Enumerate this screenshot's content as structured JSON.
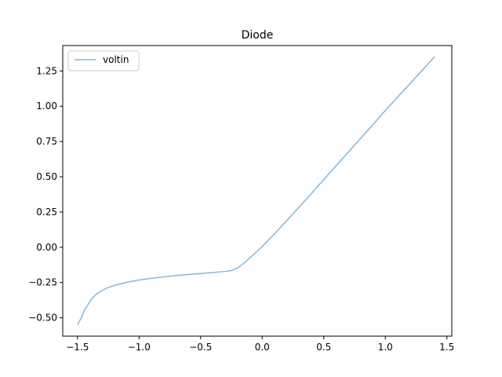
{
  "chart_data": {
    "type": "line",
    "title": "Diode",
    "xlabel": "",
    "ylabel": "",
    "xlim": [
      -1.62,
      1.54
    ],
    "ylim": [
      -0.63,
      1.43
    ],
    "xticks": [
      -1.5,
      -1.0,
      -0.5,
      0.0,
      0.5,
      1.0,
      1.5
    ],
    "xtick_labels": [
      "−1.5",
      "−1.0",
      "−0.5",
      "0.0",
      "0.5",
      "1.0",
      "1.5"
    ],
    "yticks": [
      -0.5,
      -0.25,
      0.0,
      0.25,
      0.5,
      0.75,
      1.0,
      1.25
    ],
    "ytick_labels": [
      "−0.50",
      "−0.25",
      "0.00",
      "0.25",
      "0.50",
      "0.75",
      "1.00",
      "1.25"
    ],
    "grid": false,
    "legend_position": "top-left",
    "series": [
      {
        "name": "voltin",
        "color": "#85b6d9",
        "x": [
          -1.5,
          -1.47,
          -1.44,
          -1.41,
          -1.38,
          -1.35,
          -1.3,
          -1.25,
          -1.2,
          -1.1,
          -1.0,
          -0.9,
          -0.8,
          -0.7,
          -0.6,
          -0.5,
          -0.4,
          -0.3,
          -0.25,
          -0.2,
          -0.15,
          -0.1,
          -0.05,
          0.0,
          0.1,
          0.2,
          0.3,
          0.4,
          0.5,
          0.6,
          0.7,
          0.8,
          0.9,
          1.0,
          1.1,
          1.2,
          1.3,
          1.4
        ],
        "y": [
          -0.55,
          -0.5,
          -0.44,
          -0.4,
          -0.36,
          -0.335,
          -0.305,
          -0.285,
          -0.27,
          -0.248,
          -0.232,
          -0.22,
          -0.21,
          -0.2,
          -0.193,
          -0.186,
          -0.179,
          -0.171,
          -0.165,
          -0.146,
          -0.114,
          -0.075,
          -0.035,
          0.005,
          0.095,
          0.19,
          0.285,
          0.382,
          0.48,
          0.578,
          0.675,
          0.772,
          0.87,
          0.97,
          1.065,
          1.16,
          1.255,
          1.35
        ]
      }
    ]
  }
}
